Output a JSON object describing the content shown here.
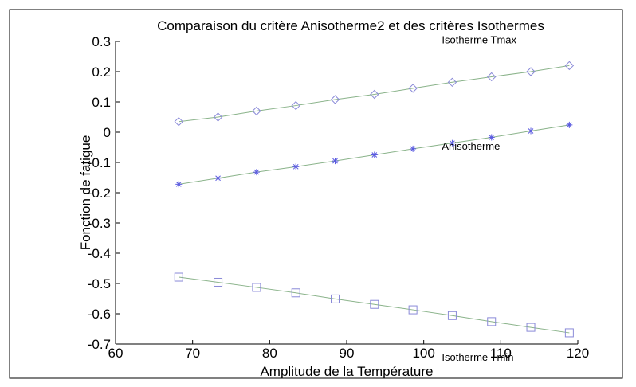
{
  "chart_data": {
    "type": "line",
    "title": "Comparaison du critère Anisotherme2 et des critères Isothermes",
    "xlabel": "Amplitude de la Température",
    "ylabel": "Fonction de fatigue",
    "xlim": [
      60,
      120
    ],
    "ylim": [
      -0.7,
      0.3
    ],
    "xticks": [
      60,
      70,
      80,
      90,
      100,
      110,
      120
    ],
    "yticks": [
      0.3,
      0.2,
      0.1,
      0,
      -0.1,
      -0.2,
      -0.3,
      -0.4,
      -0.5,
      -0.6,
      -0.7
    ],
    "x": [
      68.2,
      73.3,
      78.3,
      83.4,
      88.5,
      93.6,
      98.6,
      103.7,
      108.8,
      113.9,
      118.9
    ],
    "grid": false,
    "series": [
      {
        "name": "Isotherme Tmax",
        "marker": "diamond",
        "color": "#8ab38a",
        "marker_color": "#8a8ad8",
        "values": [
          0.035,
          0.05,
          0.07,
          0.088,
          0.108,
          0.125,
          0.145,
          0.165,
          0.183,
          0.2,
          0.22
        ]
      },
      {
        "name": "Anisotherme",
        "marker": "star",
        "color": "#8ab38a",
        "marker_color": "#5a5ae0",
        "values": [
          -0.172,
          -0.152,
          -0.132,
          -0.114,
          -0.095,
          -0.075,
          -0.055,
          -0.036,
          -0.017,
          0.004,
          0.024
        ]
      },
      {
        "name": "Isotherme Tmin",
        "marker": "square",
        "color": "#8ab38a",
        "marker_color": "#8a8ad8",
        "values": [
          -0.479,
          -0.496,
          -0.513,
          -0.531,
          -0.551,
          -0.569,
          -0.587,
          -0.606,
          -0.626,
          -0.645,
          -0.663
        ]
      }
    ]
  }
}
